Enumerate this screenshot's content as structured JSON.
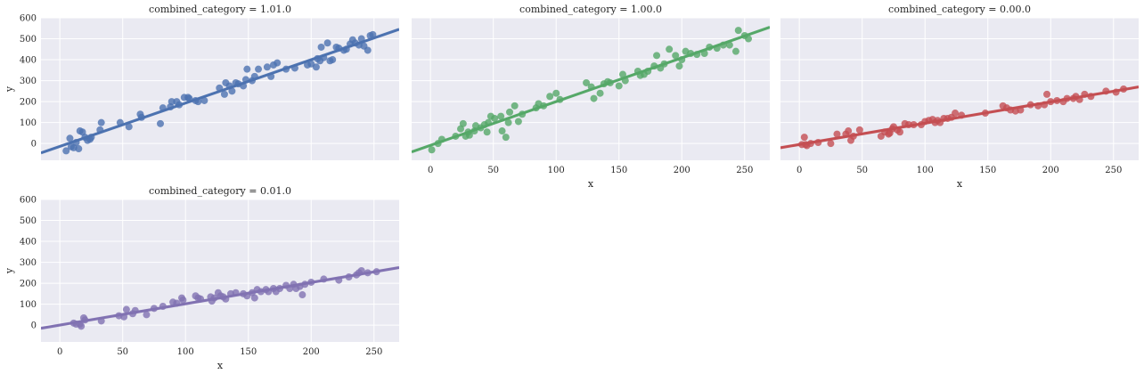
{
  "chart_data": {
    "type": "scatter",
    "style": "seaborn-darkgrid-lmplot",
    "grid": true,
    "xlim": [
      -15,
      270
    ],
    "ylim": [
      -80,
      600
    ],
    "xticks": [
      0,
      50,
      100,
      150,
      200,
      250
    ],
    "yticks": [
      0,
      100,
      200,
      300,
      400,
      500,
      600
    ],
    "xlabel": "x",
    "ylabel": "y",
    "panels": [
      {
        "title": "combined_category = 1.01.0",
        "color": "#4c72b0",
        "fit": {
          "x": [
            -15,
            270
          ],
          "y": [
            -45,
            545
          ]
        },
        "points": [
          [
            5,
            -35
          ],
          [
            8,
            25
          ],
          [
            9,
            -15
          ],
          [
            11,
            -20
          ],
          [
            13,
            5
          ],
          [
            15,
            -25
          ],
          [
            16,
            60
          ],
          [
            18,
            55
          ],
          [
            20,
            30
          ],
          [
            22,
            15
          ],
          [
            24,
            20
          ],
          [
            25,
            30
          ],
          [
            32,
            65
          ],
          [
            33,
            100
          ],
          [
            48,
            100
          ],
          [
            55,
            80
          ],
          [
            64,
            140
          ],
          [
            65,
            125
          ],
          [
            80,
            95
          ],
          [
            82,
            170
          ],
          [
            88,
            175
          ],
          [
            89,
            200
          ],
          [
            93,
            200
          ],
          [
            95,
            185
          ],
          [
            99,
            220
          ],
          [
            102,
            220
          ],
          [
            103,
            215
          ],
          [
            108,
            205
          ],
          [
            110,
            200
          ],
          [
            115,
            205
          ],
          [
            127,
            265
          ],
          [
            131,
            235
          ],
          [
            132,
            290
          ],
          [
            135,
            275
          ],
          [
            137,
            250
          ],
          [
            140,
            290
          ],
          [
            142,
            285
          ],
          [
            146,
            275
          ],
          [
            148,
            305
          ],
          [
            149,
            355
          ],
          [
            153,
            300
          ],
          [
            155,
            320
          ],
          [
            158,
            355
          ],
          [
            165,
            365
          ],
          [
            168,
            320
          ],
          [
            170,
            375
          ],
          [
            173,
            385
          ],
          [
            180,
            355
          ],
          [
            187,
            360
          ],
          [
            197,
            375
          ],
          [
            200,
            380
          ],
          [
            204,
            365
          ],
          [
            205,
            405
          ],
          [
            207,
            395
          ],
          [
            208,
            460
          ],
          [
            210,
            410
          ],
          [
            213,
            480
          ],
          [
            215,
            395
          ],
          [
            217,
            400
          ],
          [
            220,
            460
          ],
          [
            222,
            455
          ],
          [
            226,
            445
          ],
          [
            228,
            450
          ],
          [
            231,
            475
          ],
          [
            233,
            495
          ],
          [
            235,
            480
          ],
          [
            238,
            470
          ],
          [
            240,
            500
          ],
          [
            242,
            465
          ],
          [
            245,
            445
          ],
          [
            247,
            515
          ],
          [
            249,
            520
          ]
        ]
      },
      {
        "title": "combined_category = 1.00.0",
        "color": "#55a868",
        "fit": {
          "x": [
            -15,
            270
          ],
          "y": [
            -40,
            555
          ]
        },
        "points": [
          [
            1,
            -30
          ],
          [
            6,
            0
          ],
          [
            9,
            20
          ],
          [
            20,
            35
          ],
          [
            24,
            70
          ],
          [
            26,
            95
          ],
          [
            28,
            35
          ],
          [
            30,
            55
          ],
          [
            31,
            40
          ],
          [
            35,
            60
          ],
          [
            36,
            85
          ],
          [
            40,
            75
          ],
          [
            43,
            90
          ],
          [
            45,
            55
          ],
          [
            46,
            100
          ],
          [
            48,
            130
          ],
          [
            51,
            120
          ],
          [
            56,
            130
          ],
          [
            57,
            60
          ],
          [
            60,
            30
          ],
          [
            62,
            100
          ],
          [
            63,
            150
          ],
          [
            67,
            180
          ],
          [
            70,
            105
          ],
          [
            73,
            140
          ],
          [
            84,
            170
          ],
          [
            86,
            190
          ],
          [
            90,
            180
          ],
          [
            95,
            225
          ],
          [
            100,
            240
          ],
          [
            103,
            210
          ],
          [
            124,
            290
          ],
          [
            128,
            270
          ],
          [
            130,
            215
          ],
          [
            135,
            240
          ],
          [
            138,
            285
          ],
          [
            141,
            295
          ],
          [
            143,
            290
          ],
          [
            150,
            275
          ],
          [
            153,
            330
          ],
          [
            155,
            300
          ],
          [
            165,
            345
          ],
          [
            167,
            325
          ],
          [
            170,
            330
          ],
          [
            173,
            345
          ],
          [
            178,
            370
          ],
          [
            180,
            420
          ],
          [
            183,
            360
          ],
          [
            186,
            380
          ],
          [
            190,
            450
          ],
          [
            195,
            420
          ],
          [
            198,
            370
          ],
          [
            200,
            400
          ],
          [
            203,
            440
          ],
          [
            207,
            430
          ],
          [
            212,
            425
          ],
          [
            218,
            430
          ],
          [
            222,
            460
          ],
          [
            228,
            455
          ],
          [
            233,
            470
          ],
          [
            238,
            470
          ],
          [
            243,
            440
          ],
          [
            245,
            540
          ],
          [
            250,
            515
          ],
          [
            253,
            500
          ]
        ]
      },
      {
        "title": "combined_category = 0.00.0",
        "color": "#c44e52",
        "fit": {
          "x": [
            -15,
            270
          ],
          "y": [
            -20,
            270
          ]
        },
        "points": [
          [
            2,
            -5
          ],
          [
            4,
            30
          ],
          [
            5,
            -5
          ],
          [
            6,
            -10
          ],
          [
            9,
            0
          ],
          [
            15,
            5
          ],
          [
            25,
            0
          ],
          [
            30,
            45
          ],
          [
            37,
            45
          ],
          [
            39,
            60
          ],
          [
            41,
            15
          ],
          [
            43,
            35
          ],
          [
            48,
            65
          ],
          [
            65,
            35
          ],
          [
            68,
            55
          ],
          [
            71,
            45
          ],
          [
            72,
            50
          ],
          [
            74,
            70
          ],
          [
            75,
            80
          ],
          [
            78,
            65
          ],
          [
            80,
            55
          ],
          [
            84,
            95
          ],
          [
            87,
            90
          ],
          [
            91,
            90
          ],
          [
            97,
            90
          ],
          [
            100,
            105
          ],
          [
            103,
            110
          ],
          [
            106,
            115
          ],
          [
            108,
            100
          ],
          [
            110,
            110
          ],
          [
            112,
            100
          ],
          [
            115,
            120
          ],
          [
            118,
            120
          ],
          [
            121,
            125
          ],
          [
            124,
            145
          ],
          [
            129,
            135
          ],
          [
            148,
            145
          ],
          [
            162,
            180
          ],
          [
            165,
            170
          ],
          [
            168,
            160
          ],
          [
            172,
            155
          ],
          [
            176,
            160
          ],
          [
            184,
            185
          ],
          [
            190,
            180
          ],
          [
            195,
            185
          ],
          [
            197,
            235
          ],
          [
            200,
            200
          ],
          [
            205,
            205
          ],
          [
            210,
            200
          ],
          [
            213,
            215
          ],
          [
            218,
            215
          ],
          [
            220,
            225
          ],
          [
            223,
            210
          ],
          [
            227,
            235
          ],
          [
            232,
            225
          ],
          [
            244,
            250
          ],
          [
            252,
            245
          ],
          [
            258,
            260
          ]
        ]
      },
      {
        "title": "combined_category = 0.01.0",
        "color": "#8172b2",
        "fit": {
          "x": [
            -15,
            270
          ],
          "y": [
            -15,
            275
          ]
        },
        "points": [
          [
            11,
            10
          ],
          [
            13,
            5
          ],
          [
            16,
            5
          ],
          [
            17,
            -5
          ],
          [
            19,
            35
          ],
          [
            20,
            25
          ],
          [
            33,
            20
          ],
          [
            47,
            45
          ],
          [
            51,
            40
          ],
          [
            53,
            75
          ],
          [
            58,
            55
          ],
          [
            60,
            70
          ],
          [
            69,
            50
          ],
          [
            75,
            80
          ],
          [
            82,
            90
          ],
          [
            90,
            110
          ],
          [
            93,
            105
          ],
          [
            97,
            130
          ],
          [
            98,
            120
          ],
          [
            108,
            140
          ],
          [
            110,
            130
          ],
          [
            112,
            125
          ],
          [
            120,
            135
          ],
          [
            121,
            115
          ],
          [
            123,
            130
          ],
          [
            126,
            155
          ],
          [
            128,
            140
          ],
          [
            130,
            135
          ],
          [
            132,
            125
          ],
          [
            136,
            150
          ],
          [
            140,
            155
          ],
          [
            146,
            150
          ],
          [
            149,
            140
          ],
          [
            153,
            155
          ],
          [
            155,
            130
          ],
          [
            157,
            170
          ],
          [
            160,
            160
          ],
          [
            164,
            170
          ],
          [
            166,
            160
          ],
          [
            170,
            175
          ],
          [
            172,
            160
          ],
          [
            175,
            175
          ],
          [
            180,
            190
          ],
          [
            183,
            175
          ],
          [
            186,
            195
          ],
          [
            188,
            175
          ],
          [
            191,
            185
          ],
          [
            193,
            145
          ],
          [
            195,
            195
          ],
          [
            200,
            205
          ],
          [
            210,
            220
          ],
          [
            222,
            215
          ],
          [
            230,
            230
          ],
          [
            236,
            240
          ],
          [
            238,
            250
          ],
          [
            240,
            260
          ],
          [
            245,
            250
          ],
          [
            252,
            255
          ]
        ]
      }
    ]
  }
}
